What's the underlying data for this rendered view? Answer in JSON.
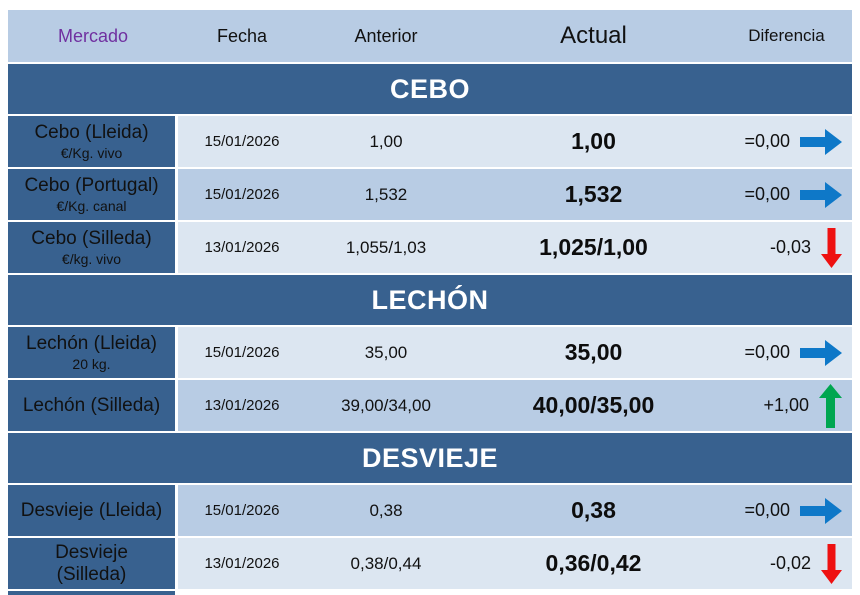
{
  "header": {
    "mercado": "Mercado",
    "fecha": "Fecha",
    "anterior": "Anterior",
    "actual": "Actual",
    "diferencia": "Diferencia"
  },
  "sections": [
    {
      "title": "CEBO",
      "rows": [
        {
          "market": "Cebo (Lleida)",
          "unit": "€/Kg. vivo",
          "fecha": "15/01/2026",
          "anterior": "1,00",
          "actual": "1,00",
          "diferencia": "=0,00",
          "trend": "flat",
          "shade": "light"
        },
        {
          "market": "Cebo (Portugal)",
          "unit": "€/Kg. canal",
          "fecha": "15/01/2026",
          "anterior": "1,532",
          "actual": "1,532",
          "diferencia": "=0,00",
          "trend": "flat",
          "shade": "medium"
        },
        {
          "market": "Cebo (Silleda)",
          "unit": "€/kg. vivo",
          "fecha": "13/01/2026",
          "anterior": "1,055/1,03",
          "actual": "1,025/1,00",
          "diferencia": "-0,03",
          "trend": "down",
          "shade": "light"
        }
      ]
    },
    {
      "title": "LECHÓN",
      "rows": [
        {
          "market": "Lechón (Lleida)",
          "unit": "20 kg.",
          "fecha": "15/01/2026",
          "anterior": "35,00",
          "actual": "35,00",
          "diferencia": "=0,00",
          "trend": "flat",
          "shade": "light"
        },
        {
          "market": "Lechón (Silleda)",
          "unit": "",
          "fecha": "13/01/2026",
          "anterior": "39,00/34,00",
          "actual": "40,00/35,00",
          "diferencia": "+1,00",
          "trend": "up",
          "shade": "medium"
        }
      ]
    },
    {
      "title": "DESVIEJE",
      "rows": [
        {
          "market": "Desvieje (Lleida)",
          "unit": "",
          "fecha": "15/01/2026",
          "anterior": "0,38",
          "actual": "0,38",
          "diferencia": "=0,00",
          "trend": "flat",
          "shade": "medium"
        },
        {
          "market": "Desvieje (Silleda)",
          "unit": "",
          "fecha": "13/01/2026",
          "anterior": "0,38/0,44",
          "actual": "0,36/0,42",
          "diferencia": "-0,02",
          "trend": "down",
          "shade": "light"
        }
      ]
    }
  ],
  "colors": {
    "section_bg": "#38618f",
    "header_bg": "#b8cce4",
    "row_light": "#dce6f1",
    "row_medium": "#b8cce4",
    "mercado_text": "#7030a0",
    "arrow_flat": "#0e78c8",
    "arrow_up": "#00a650",
    "arrow_down": "#ee1111"
  }
}
